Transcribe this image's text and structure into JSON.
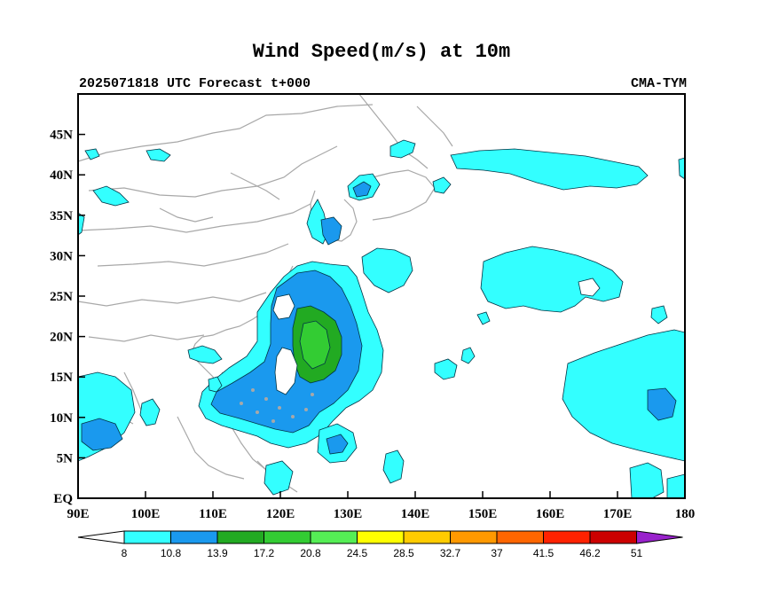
{
  "header": {
    "title": "Wind Speed(m/s) at 10m",
    "subtitle_left": "2025071818 UTC Forecast t+000",
    "subtitle_right": "CMA-TYM"
  },
  "map": {
    "lon_range": [
      90,
      180
    ],
    "lat_range": [
      0,
      50
    ],
    "lon_ticks": [
      "90E",
      "100E",
      "110E",
      "120E",
      "130E",
      "140E",
      "150E",
      "160E",
      "170E",
      "180"
    ],
    "lat_ticks": [
      "EQ",
      "5N",
      "10N",
      "15N",
      "20N",
      "25N",
      "30N",
      "35N",
      "40N",
      "45N"
    ],
    "boundaries_color": "#a8a8a8"
  },
  "legend": {
    "levels": [
      "8",
      "10.8",
      "13.9",
      "17.2",
      "20.8",
      "24.5",
      "28.5",
      "32.7",
      "37",
      "41.5",
      "46.2",
      "51"
    ],
    "colors": [
      "#ffffff",
      "#33ffff",
      "#1a99ee",
      "#22aa22",
      "#33cc33",
      "#55ee55",
      "#ffff00",
      "#ffcc00",
      "#ff9900",
      "#ff6600",
      "#ff2200",
      "#cc0000",
      "#9922cc"
    ]
  }
}
